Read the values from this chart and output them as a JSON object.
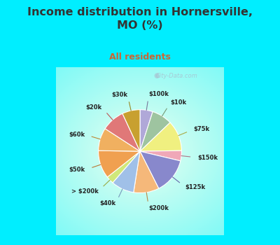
{
  "title": "Income distribution in Hornersville,\nMO (%)",
  "subtitle": "All residents",
  "title_color": "#333333",
  "subtitle_color": "#cc6633",
  "bg_cyan": "#00eeff",
  "bg_chart_center": "#f0fff0",
  "watermark": "City-Data.com",
  "labels": [
    "$100k",
    "$10k",
    "$75k",
    "$150k",
    "$125k",
    "$200k",
    "$40k",
    "> $200k",
    "$50k",
    "$60k",
    "$20k",
    "$30k"
  ],
  "values": [
    5,
    8,
    12,
    4,
    14,
    10,
    9,
    3,
    11,
    9,
    9,
    7
  ],
  "colors": [
    "#b0a8d8",
    "#9ec4a0",
    "#f0f080",
    "#f0a8b8",
    "#8888cc",
    "#f5b87a",
    "#a0c0e8",
    "#d0e87a",
    "#f0a050",
    "#f0b060",
    "#e07878",
    "#c8a030"
  ],
  "label_colors": [
    "#777799",
    "#779977",
    "#aaaa44",
    "#aa7788",
    "#6666aa",
    "#bb8844",
    "#7799bb",
    "#99aa44",
    "#bb7733",
    "#bb8833",
    "#bb5555",
    "#998822"
  ],
  "figsize": [
    4.0,
    3.5
  ],
  "dpi": 100
}
